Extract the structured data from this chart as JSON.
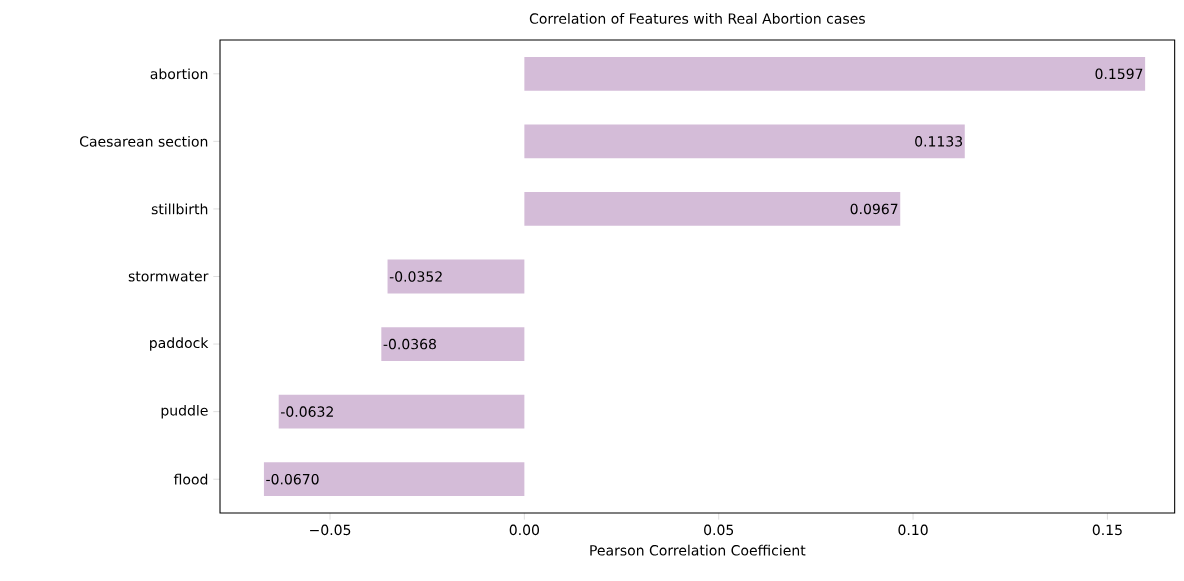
{
  "chart_data": {
    "type": "bar",
    "orientation": "horizontal",
    "title": "Correlation of Features with Real Abortion cases",
    "xlabel": "Pearson Correlation Coefficient",
    "categories": [
      "abortion",
      "Caesarean section",
      "stillbirth",
      "stormwater",
      "paddock",
      "puddle",
      "flood"
    ],
    "values": [
      0.1597,
      0.1133,
      0.0967,
      -0.0352,
      -0.0368,
      -0.0632,
      -0.067
    ],
    "value_labels": [
      "0.1597",
      "0.1133",
      "0.0967",
      "-0.0352",
      "-0.0368",
      "-0.0632",
      "-0.0670"
    ],
    "color": "#d4bcd8",
    "xlim": [
      -0.0783,
      0.1673
    ],
    "xticks": [
      {
        "value": -0.05,
        "label": "−0.05"
      },
      {
        "value": 0.0,
        "label": "0.00"
      },
      {
        "value": 0.05,
        "label": "0.05"
      },
      {
        "value": 0.1,
        "label": "0.10"
      },
      {
        "value": 0.15,
        "label": "0.15"
      }
    ]
  }
}
